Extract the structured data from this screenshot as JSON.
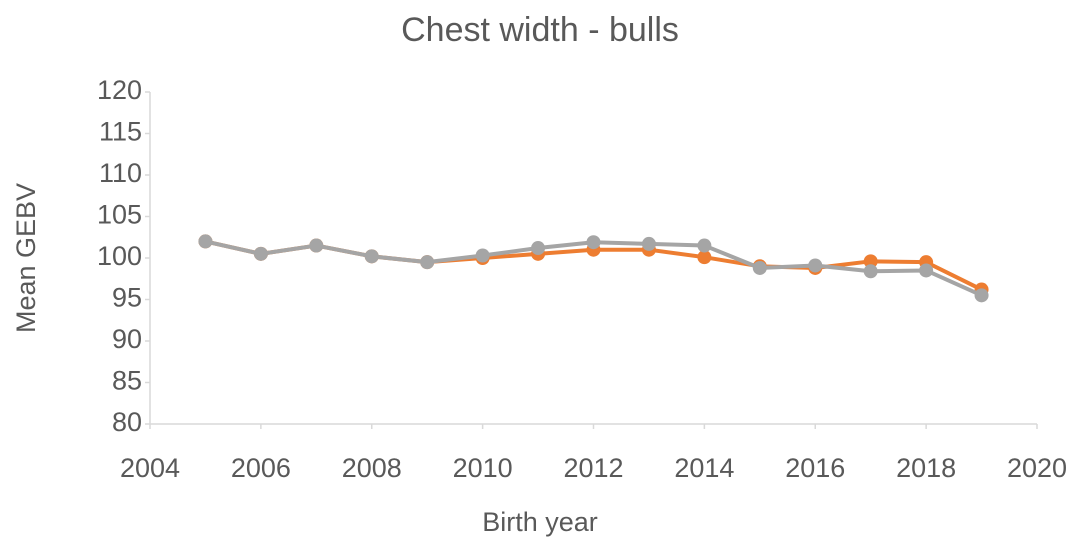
{
  "chart_data": {
    "type": "line",
    "title": "Chest width - bulls",
    "x_label": "Birth year",
    "y_label": "Mean GEBV",
    "x": [
      2005,
      2006,
      2007,
      2008,
      2009,
      2010,
      2011,
      2012,
      2013,
      2014,
      2015,
      2016,
      2017,
      2018,
      2019
    ],
    "series": [
      {
        "color": "#ed7d31",
        "values": [
          102,
          100.5,
          101.5,
          100.2,
          99.5,
          100,
          100.5,
          101,
          101,
          100.1,
          99,
          98.8,
          99.6,
          99.5,
          96.2
        ]
      },
      {
        "color": "#a5a5a5",
        "values": [
          102,
          100.5,
          101.5,
          100.2,
          99.5,
          100.3,
          101.2,
          101.9,
          101.7,
          101.5,
          98.8,
          99.1,
          98.4,
          98.5,
          95.5
        ]
      }
    ],
    "xlim": [
      2004,
      2020
    ],
    "xticks": [
      2004,
      2006,
      2008,
      2010,
      2012,
      2014,
      2016,
      2018,
      2020
    ],
    "ylim": [
      80,
      120
    ],
    "yticks": [
      80,
      85,
      90,
      95,
      100,
      105,
      110,
      115,
      120
    ],
    "grid": false
  }
}
